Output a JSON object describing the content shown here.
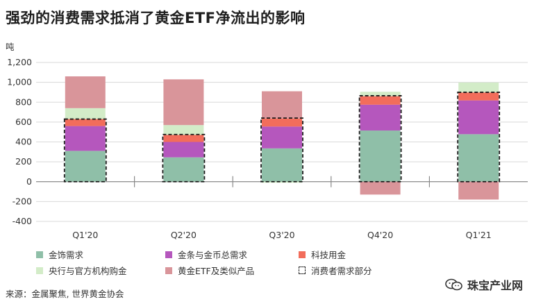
{
  "title": "强劲的消费需求抵消了黄金ETF净流出的影响",
  "source": "来源：金属聚焦, 世界黄金协会",
  "watermark": "珠宝产业网",
  "chart_data": {
    "type": "bar",
    "stacked": true,
    "ylabel": "吨",
    "ylim": [
      -400,
      1200
    ],
    "yticks": [
      -400,
      -200,
      0,
      200,
      400,
      600,
      800,
      1000,
      1200
    ],
    "ytick_labels": [
      "-400",
      "-200",
      "0",
      "200",
      "400",
      "600",
      "800",
      "1,000",
      "1,200"
    ],
    "grid": true,
    "categories": [
      "Q1'20",
      "Q2'20",
      "Q3'20",
      "Q4'20",
      "Q1'21"
    ],
    "series": [
      {
        "name": "金饰需求",
        "color": "#8fbfa8",
        "values": [
          310,
          245,
          335,
          515,
          478
        ]
      },
      {
        "name": "金条与金币总需求",
        "color": "#b557bd",
        "values": [
          250,
          155,
          220,
          260,
          340
        ]
      },
      {
        "name": "科技用金",
        "color": "#f26d5b",
        "values": [
          70,
          70,
          80,
          85,
          80
        ]
      },
      {
        "name": "央行与官方机构购金",
        "color": "#d3ecc8",
        "values": [
          110,
          100,
          -10,
          45,
          100
        ]
      },
      {
        "name": "黄金ETF及类似产品",
        "color": "#d9959a",
        "values": [
          320,
          460,
          275,
          -130,
          -180
        ]
      }
    ],
    "consumer_demand": {
      "name": "消费者需求部分",
      "values": [
        630,
        475,
        640,
        865,
        900
      ]
    },
    "legend": {
      "position": "bottom",
      "columns": 3
    }
  }
}
